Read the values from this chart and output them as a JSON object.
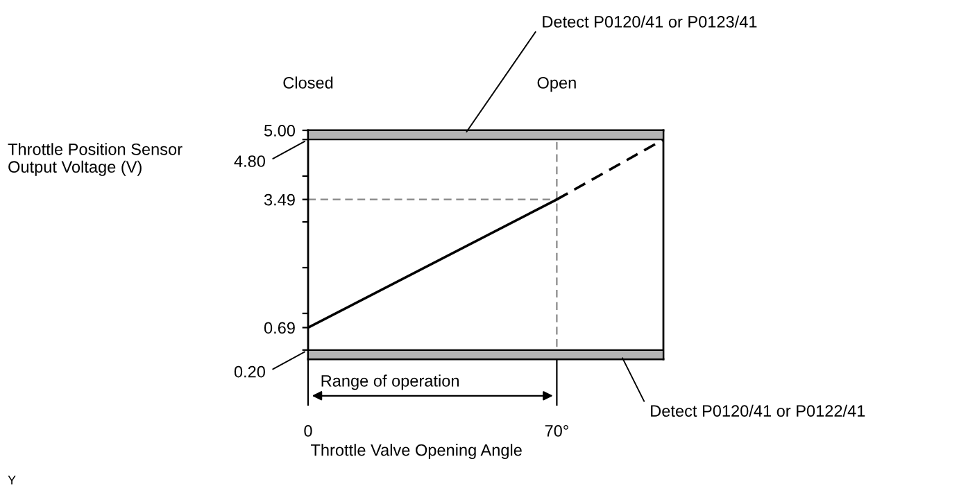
{
  "chart_data": {
    "type": "line",
    "xlabel": "Throttle Valve Opening Angle",
    "xlim": [
      0,
      100
    ],
    "xticks": [
      0,
      {
        "value": 70,
        "label": "70°"
      }
    ],
    "ylim": [
      0,
      5.0
    ],
    "yticks": [
      {
        "value": 0.2,
        "label": null
      },
      {
        "value": 0.69,
        "label": "0.69"
      },
      {
        "value": 1,
        "label": null
      },
      {
        "value": 2,
        "label": null
      },
      {
        "value": 3,
        "label": null
      },
      {
        "value": 3.49,
        "label": "3.49"
      },
      {
        "value": 4,
        "label": null
      },
      {
        "value": 4.8,
        "label": null
      },
      {
        "value": 5.0,
        "label": "5.00"
      }
    ],
    "series": [
      {
        "color": "#000000",
        "x": [
          0,
          70
        ],
        "values": [
          0.69,
          3.49
        ],
        "line_style": "solid"
      },
      {
        "color": "#000000",
        "x": [
          70,
          100
        ],
        "values": [
          3.49,
          4.8
        ],
        "line_style": "dashed"
      }
    ],
    "bands": [
      {
        "axis": "y",
        "from": 4.8,
        "to": 5.0,
        "label": "Detect P0120/41 or P0123/41",
        "color": "#b4b4b4"
      },
      {
        "axis": "y",
        "from": 0,
        "to": 0.2,
        "label": "Detect P0120/41 or P0122/41",
        "color": "#b4b4b4"
      }
    ],
    "ref_lines": [
      {
        "axis": "y",
        "value": 3.49,
        "color": "#888888",
        "line_style": "dashed"
      },
      {
        "axis": "x",
        "value": 70,
        "color": "#888888",
        "line_style": "dashed"
      }
    ],
    "annotations": [
      {
        "text": "Closed",
        "x": 0,
        "y": 5.0
      },
      {
        "text": "Open",
        "x": 70,
        "y": 5.0
      },
      {
        "text": "Range of operation",
        "x": 35,
        "y": 0
      },
      {
        "text": "4.80",
        "x": 0,
        "y": 4.8
      },
      {
        "text": "0.20",
        "x": 0,
        "y": 0.2
      },
      "Throttle Position Sensor\nOutput Voltage (V)",
      "Y"
    ],
    "grid": false
  }
}
